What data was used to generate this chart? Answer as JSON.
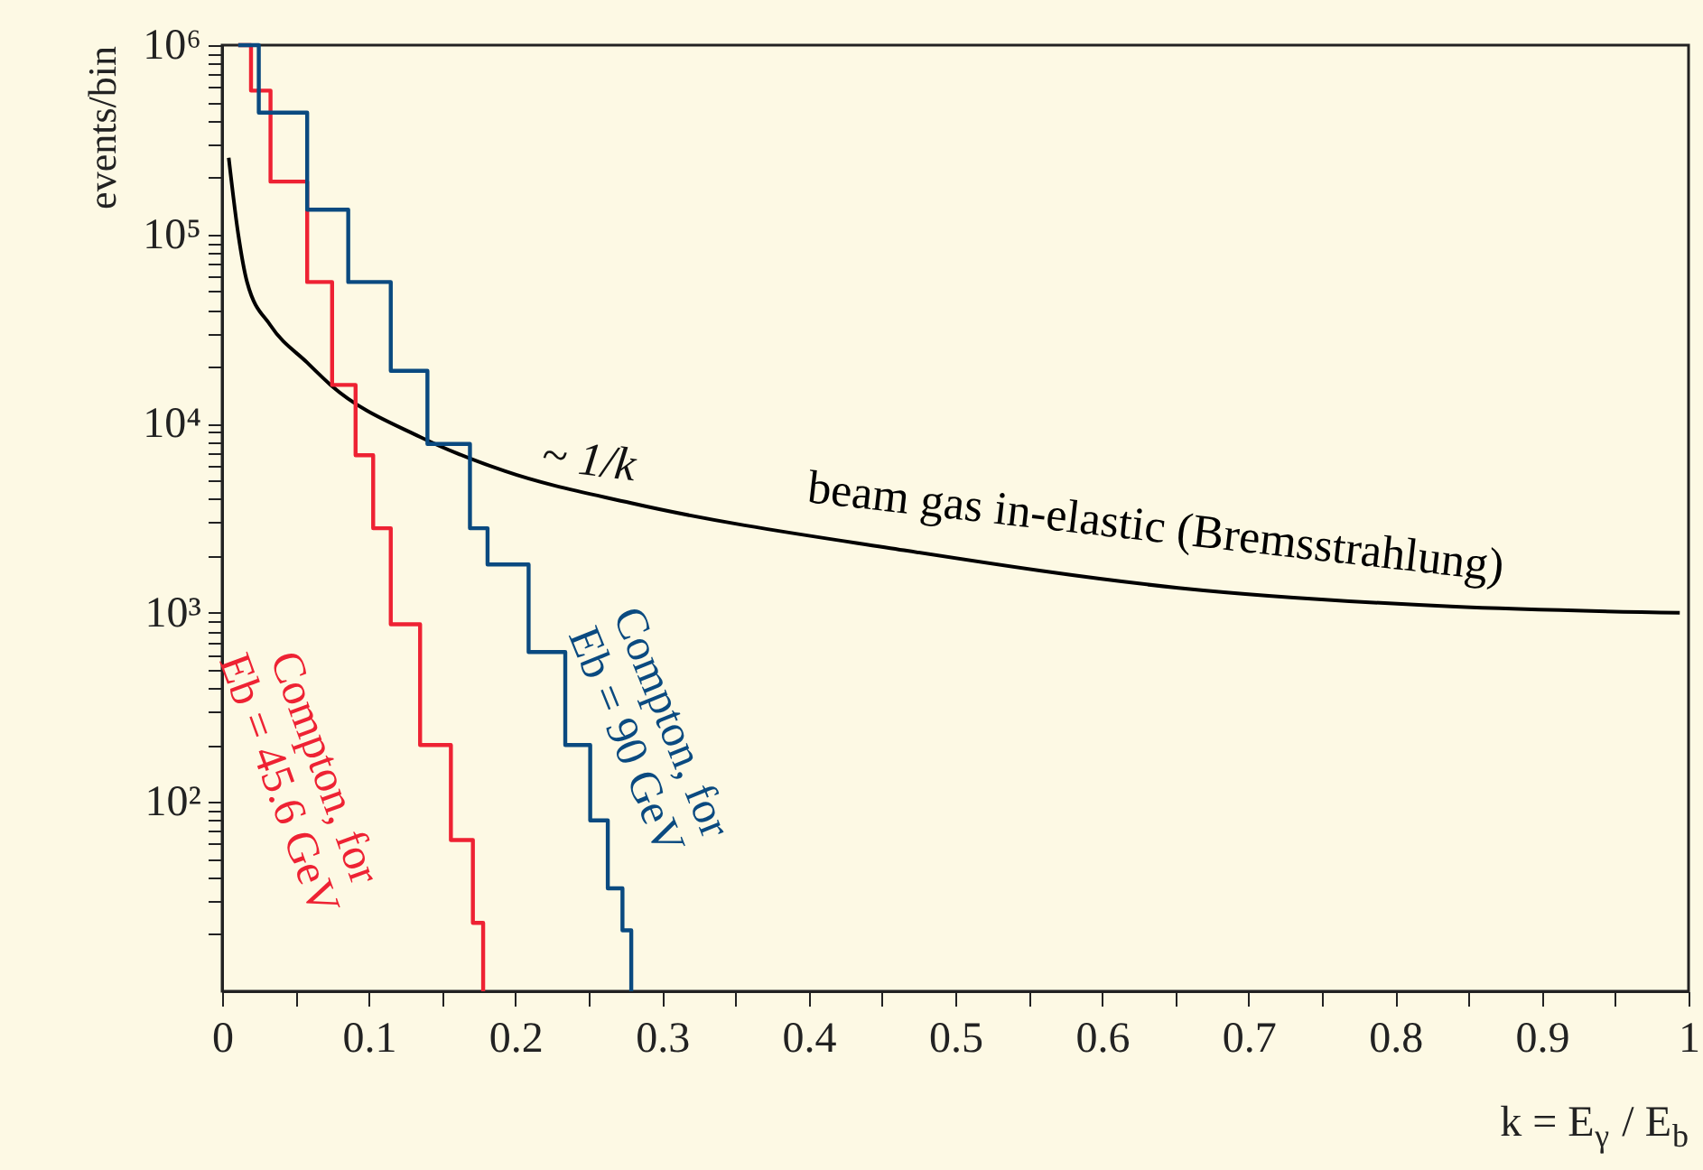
{
  "chart_data": {
    "type": "line",
    "xlabel": "k = E$_{γ}$ / E$_{b}$",
    "ylabel": "events/bin",
    "log": "y",
    "grid": false,
    "xlim": [
      0,
      1
    ],
    "ylim": [
      10,
      1000000
    ],
    "xticks": [
      0,
      {
        "value": 0.05,
        "label": null
      },
      0.1,
      {
        "value": 0.15,
        "label": null
      },
      0.2,
      {
        "value": 0.25,
        "label": null
      },
      0.3,
      {
        "value": 0.35,
        "label": null
      },
      0.4,
      {
        "value": 0.45,
        "label": null
      },
      0.5,
      {
        "value": 0.55,
        "label": null
      },
      0.6,
      {
        "value": 0.65,
        "label": null
      },
      0.7,
      {
        "value": 0.75,
        "label": null
      },
      0.8,
      {
        "value": 0.85,
        "label": null
      },
      0.9,
      {
        "value": 0.95,
        "label": null
      },
      1
    ],
    "yticks": [
      {
        "value": 20,
        "label": null
      },
      {
        "value": 30,
        "label": null
      },
      {
        "value": 40,
        "label": null
      },
      {
        "value": 50,
        "label": null
      },
      {
        "value": 60,
        "label": null
      },
      {
        "value": 70,
        "label": null
      },
      {
        "value": 80,
        "label": null
      },
      {
        "value": 90,
        "label": null
      },
      {
        "value": 100,
        "label": "10²"
      },
      {
        "value": 200,
        "label": null
      },
      {
        "value": 300,
        "label": null
      },
      {
        "value": 400,
        "label": null
      },
      {
        "value": 500,
        "label": null
      },
      {
        "value": 600,
        "label": null
      },
      {
        "value": 700,
        "label": null
      },
      {
        "value": 800,
        "label": null
      },
      {
        "value": 900,
        "label": null
      },
      {
        "value": 1000,
        "label": "10³"
      },
      {
        "value": 2000,
        "label": null
      },
      {
        "value": 3000,
        "label": null
      },
      {
        "value": 4000,
        "label": null
      },
      {
        "value": 5000,
        "label": null
      },
      {
        "value": 6000,
        "label": null
      },
      {
        "value": 7000,
        "label": null
      },
      {
        "value": 8000,
        "label": null
      },
      {
        "value": 9000,
        "label": null
      },
      {
        "value": 10000,
        "label": "10⁴"
      },
      {
        "value": 20000,
        "label": null
      },
      {
        "value": 30000,
        "label": null
      },
      {
        "value": 40000,
        "label": null
      },
      {
        "value": 50000,
        "label": null
      },
      {
        "value": 60000,
        "label": null
      },
      {
        "value": 70000,
        "label": null
      },
      {
        "value": 80000,
        "label": null
      },
      {
        "value": 90000,
        "label": null
      },
      {
        "value": 100000,
        "label": "10⁵"
      },
      {
        "value": 200000,
        "label": null
      },
      {
        "value": 300000,
        "label": null
      },
      {
        "value": 400000,
        "label": null
      },
      {
        "value": 500000,
        "label": null
      },
      {
        "value": 600000,
        "label": null
      },
      {
        "value": 700000,
        "label": null
      },
      {
        "value": 800000,
        "label": null
      },
      {
        "value": 900000,
        "label": null
      },
      {
        "value": 1000000,
        "label": "10⁶"
      }
    ],
    "series": [
      {
        "name": "beam gas in-elastic (Bremsstrahlung)",
        "color": "#000000",
        "x": [
          0.0045,
          0.011,
          0.017,
          0.033,
          0.058,
          0.074,
          0.135,
          0.193,
          0.279,
          0.465,
          0.652,
          0.838,
          0.994
        ],
        "values": [
          254000,
          100000,
          56000,
          33000,
          21000,
          16000,
          8500,
          5600,
          3800,
          2140,
          1355,
          1080,
          1000
        ]
      },
      {
        "name": "Compton, for\nEb = 45.6 GeV",
        "type": "step",
        "color": "#ee2233",
        "x": [
          0.011,
          0.0197,
          0.033,
          0.058,
          0.075,
          0.091,
          0.103,
          0.115,
          0.135,
          0.156,
          0.171,
          0.178
        ],
        "values": [
          1000000,
          575000,
          190000,
          56000,
          16000,
          6800,
          2800,
          870,
          200,
          63,
          23,
          10
        ]
      },
      {
        "name": "Compton, for\nEb = 90  GeV",
        "type": "step",
        "color": "#0a4a80",
        "x": [
          0.011,
          0.025,
          0.058,
          0.086,
          0.115,
          0.14,
          0.169,
          0.181,
          0.209,
          0.234,
          0.251,
          0.263,
          0.273,
          0.279
        ],
        "values": [
          1000000,
          440000,
          135000,
          56000,
          19000,
          7800,
          2800,
          1800,
          620,
          200,
          80,
          35,
          21,
          10
        ]
      }
    ],
    "annotations": [
      "~ 1/k"
    ]
  }
}
